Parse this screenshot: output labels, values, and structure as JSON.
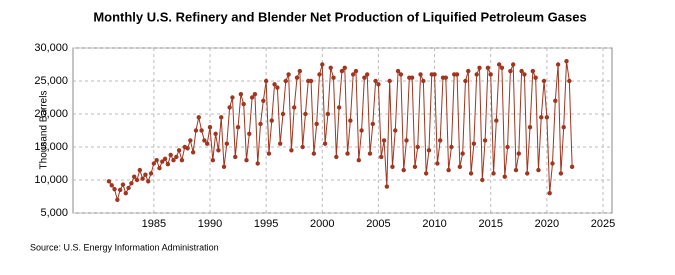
{
  "chart_data": {
    "type": "line",
    "title": "Monthly U.S. Refinery and Blender Net Production of Liquified Petroleum Gases",
    "y_label": "Thousand Barrels",
    "source": "Source: U.S. Energy Information Administration",
    "xlim": [
      1977.8,
      2025.8
    ],
    "xticks": [
      1985,
      1990,
      1995,
      2000,
      2005,
      2010,
      2015,
      2020,
      2025
    ],
    "ylim": [
      5000,
      30000
    ],
    "yticks": [
      {
        "value": 5000,
        "label": "5,000"
      },
      {
        "value": 10000,
        "label": "10,000"
      },
      {
        "value": 15000,
        "label": "15,000"
      },
      {
        "value": 20000,
        "label": "20,000"
      },
      {
        "value": 25000,
        "label": "25,000"
      },
      {
        "value": 30000,
        "label": "30,000"
      }
    ],
    "grid": true,
    "x": [
      1981,
      1981.25,
      1981.5,
      1981.75,
      1982,
      1982.25,
      1982.5,
      1982.75,
      1983,
      1983.25,
      1983.5,
      1983.75,
      1984,
      1984.25,
      1984.5,
      1984.75,
      1985,
      1985.25,
      1985.5,
      1985.75,
      1986,
      1986.25,
      1986.5,
      1986.75,
      1987,
      1987.25,
      1987.5,
      1987.75,
      1988,
      1988.25,
      1988.5,
      1988.75,
      1989,
      1989.25,
      1989.5,
      1989.75,
      1990,
      1990.25,
      1990.5,
      1990.75,
      1991,
      1991.25,
      1991.5,
      1991.75,
      1992,
      1992.25,
      1992.5,
      1992.75,
      1993,
      1993.25,
      1993.5,
      1993.75,
      1994,
      1994.25,
      1994.5,
      1994.75,
      1995,
      1995.25,
      1995.5,
      1995.75,
      1996,
      1996.25,
      1996.5,
      1996.75,
      1997,
      1997.25,
      1997.5,
      1997.75,
      1998,
      1998.25,
      1998.5,
      1998.75,
      1999,
      1999.25,
      1999.5,
      1999.75,
      2000,
      2000.25,
      2000.5,
      2000.75,
      2001,
      2001.25,
      2001.5,
      2001.75,
      2002,
      2002.25,
      2002.5,
      2002.75,
      2003,
      2003.25,
      2003.5,
      2003.75,
      2004,
      2004.25,
      2004.5,
      2004.75,
      2005,
      2005.25,
      2005.5,
      2005.75,
      2006,
      2006.25,
      2006.5,
      2006.75,
      2007,
      2007.25,
      2007.5,
      2007.75,
      2008,
      2008.25,
      2008.5,
      2008.75,
      2009,
      2009.25,
      2009.5,
      2009.75,
      2010,
      2010.25,
      2010.5,
      2010.75,
      2011,
      2011.25,
      2011.5,
      2011.75,
      2012,
      2012.25,
      2012.5,
      2012.75,
      2013,
      2013.25,
      2013.5,
      2013.75,
      2014,
      2014.25,
      2014.5,
      2014.75,
      2015,
      2015.25,
      2015.5,
      2015.75,
      2016,
      2016.25,
      2016.5,
      2016.75,
      2017,
      2017.25,
      2017.5,
      2017.75,
      2018,
      2018.25,
      2018.5,
      2018.75,
      2019,
      2019.25,
      2019.5,
      2019.75,
      2020,
      2020.25,
      2020.5,
      2020.75,
      2021,
      2021.25,
      2021.5,
      2021.75,
      2022,
      2022.25
    ],
    "series": [
      {
        "color": "#a0361f",
        "values": [
          9800,
          9200,
          8600,
          7000,
          8500,
          9300,
          8000,
          8800,
          9500,
          10500,
          10000,
          11500,
          10200,
          10800,
          9800,
          11000,
          12500,
          13000,
          11800,
          12800,
          13200,
          12400,
          13800,
          13000,
          13500,
          14500,
          13000,
          15000,
          14800,
          16000,
          14200,
          17500,
          19500,
          17500,
          16000,
          15500,
          18000,
          13000,
          17000,
          14500,
          19500,
          12000,
          15500,
          21000,
          22500,
          13500,
          18000,
          23000,
          21500,
          13000,
          17000,
          22500,
          23000,
          12500,
          18500,
          22000,
          25000,
          14000,
          19000,
          24500,
          24000,
          15500,
          20000,
          25000,
          26000,
          14500,
          21000,
          25500,
          26500,
          15000,
          20000,
          25000,
          25000,
          14000,
          18500,
          26000,
          27500,
          15500,
          20000,
          27000,
          25500,
          13500,
          21000,
          26500,
          27000,
          14000,
          19000,
          26000,
          26500,
          13000,
          17500,
          25500,
          26000,
          14000,
          18500,
          25000,
          24500,
          13500,
          16000,
          9000,
          25000,
          12000,
          17500,
          26500,
          26000,
          11500,
          16000,
          25500,
          25500,
          12000,
          15000,
          26000,
          25000,
          11000,
          14500,
          26000,
          26000,
          12500,
          16000,
          25500,
          25500,
          11500,
          15000,
          26000,
          26000,
          12000,
          14000,
          25000,
          26500,
          11000,
          15500,
          26000,
          27000,
          10000,
          16000,
          27000,
          26000,
          11000,
          19000,
          27500,
          27000,
          10500,
          15000,
          26500,
          27500,
          11500,
          14000,
          26500,
          26000,
          11000,
          18000,
          26500,
          25500,
          11500,
          19500,
          25000,
          19500,
          8000,
          12500,
          22000,
          27500,
          11000,
          18000,
          28000,
          25000,
          12000
        ]
      }
    ]
  }
}
